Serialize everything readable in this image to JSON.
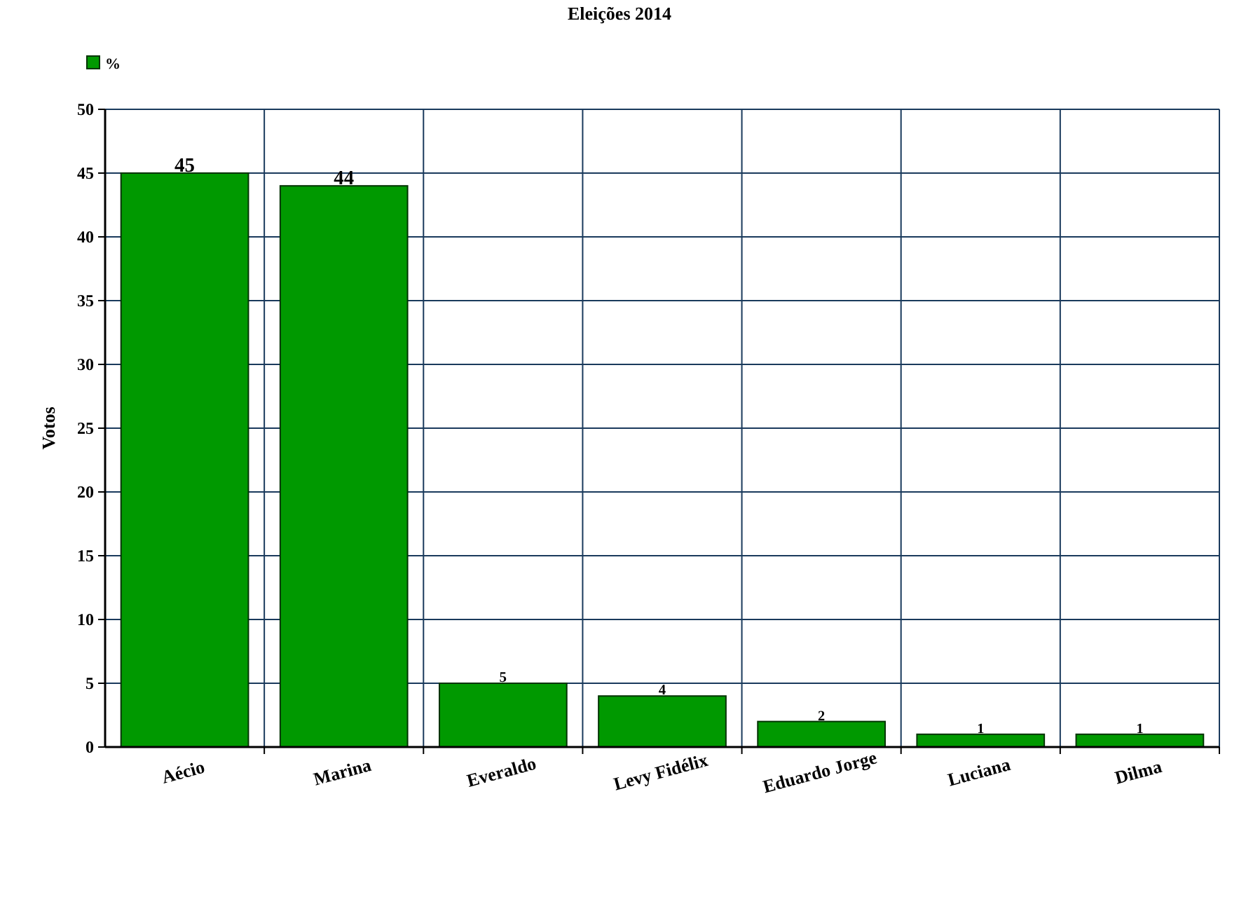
{
  "chart_data": {
    "type": "bar",
    "title": "Eleições 2014",
    "ylabel": "Votos",
    "categories": [
      "Aécio",
      "Marina",
      "Everaldo",
      "Levy Fidélix",
      "Eduardo Jorge",
      "Luciana",
      "Dilma"
    ],
    "series": [
      {
        "name": "%",
        "color": "#009900",
        "values": [
          45,
          44,
          5,
          4,
          2,
          1,
          1
        ]
      }
    ],
    "ylim": [
      0,
      50
    ],
    "yticks": [
      0,
      5,
      10,
      15,
      20,
      25,
      30,
      35,
      40,
      45,
      50
    ],
    "grid": true,
    "legend": "top left",
    "data_labels": true
  }
}
